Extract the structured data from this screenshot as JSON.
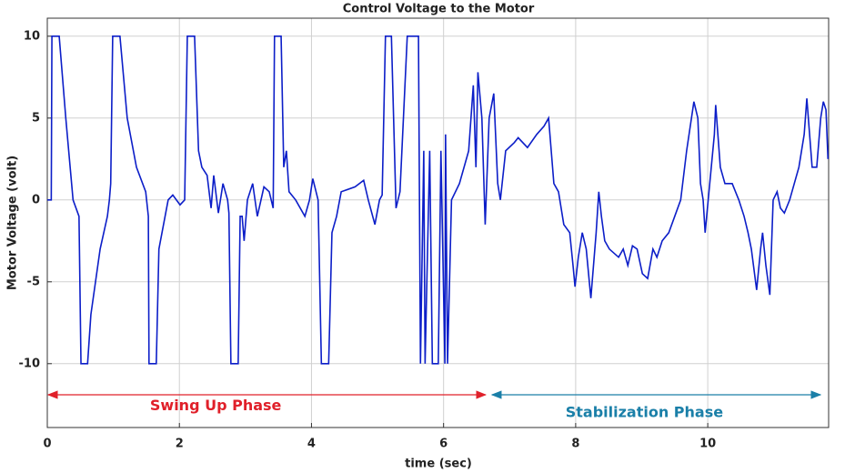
{
  "chart_data": {
    "type": "line",
    "title": "Control Voltage to the Motor",
    "xlabel": "time (sec)",
    "ylabel": "Motor Voltage (volt)",
    "color": "#0c1ec8",
    "grid": true,
    "xlim": [
      0,
      11.83
    ],
    "ylim": [
      -13.9,
      11.1
    ],
    "xticks": [
      0,
      2,
      4,
      6,
      8,
      10
    ],
    "yticks": [
      -10,
      -5,
      0,
      5,
      10
    ],
    "x": [
      0,
      0.06,
      0.07,
      0.18,
      0.28,
      0.39,
      0.48,
      0.51,
      0.61,
      0.66,
      0.8,
      0.91,
      0.94,
      0.96,
      0.99,
      1.1,
      1.21,
      1.35,
      1.49,
      1.53,
      1.54,
      1.65,
      1.69,
      1.83,
      1.9,
      2.01,
      2.08,
      2.12,
      2.23,
      2.29,
      2.34,
      2.42,
      2.48,
      2.52,
      2.59,
      2.66,
      2.73,
      2.75,
      2.78,
      2.89,
      2.92,
      2.95,
      2.98,
      3.03,
      3.11,
      3.18,
      3.28,
      3.36,
      3.42,
      3.44,
      3.54,
      3.58,
      3.62,
      3.66,
      3.76,
      3.9,
      3.97,
      4.02,
      4.1,
      4.15,
      4.26,
      4.31,
      4.38,
      4.45,
      4.66,
      4.79,
      4.86,
      4.96,
      5.03,
      5.07,
      5.12,
      5.21,
      5.28,
      5.34,
      5.45,
      5.62,
      5.65,
      5.7,
      5.72,
      5.79,
      5.83,
      5.92,
      5.96,
      6.02,
      6.03,
      6.06,
      6.12,
      6.24,
      6.38,
      6.45,
      6.49,
      6.52,
      6.58,
      6.63,
      6.69,
      6.76,
      6.82,
      6.86,
      6.94,
      7.07,
      7.13,
      7.27,
      7.41,
      7.52,
      7.59,
      7.67,
      7.74,
      7.82,
      7.91,
      7.96,
      7.99,
      8.04,
      8.1,
      8.16,
      8.23,
      8.31,
      8.35,
      8.39,
      8.44,
      8.51,
      8.65,
      8.72,
      8.79,
      8.86,
      8.93,
      9.01,
      9.09,
      9.17,
      9.23,
      9.31,
      9.41,
      9.5,
      9.59,
      9.68,
      9.79,
      9.85,
      9.89,
      9.93,
      9.96,
      10.03,
      10.1,
      10.12,
      10.19,
      10.26,
      10.37,
      10.47,
      10.55,
      10.61,
      10.66,
      10.74,
      10.8,
      10.83,
      10.88,
      10.94,
      10.99,
      11.05,
      11.1,
      11.16,
      11.24,
      11.31,
      11.38,
      11.46,
      11.5,
      11.58,
      11.65,
      11.71,
      11.75,
      11.79,
      11.82
    ],
    "values": [
      0,
      0,
      10,
      10,
      5,
      0,
      -1,
      -10,
      -10,
      -7,
      -3,
      -1,
      0,
      1,
      10,
      10,
      5,
      2,
      0.5,
      -1,
      -10,
      -10,
      -3,
      0,
      0.3,
      -0.3,
      0,
      10,
      10,
      3,
      2,
      1.5,
      -0.5,
      1.5,
      -0.8,
      1,
      0,
      -0.8,
      -10,
      -10,
      -1,
      -1,
      -2.5,
      0,
      1,
      -1,
      0.8,
      0.5,
      -0.5,
      10,
      10,
      2,
      3,
      0.5,
      0,
      -1,
      0,
      1.3,
      0,
      -10,
      -10,
      -2,
      -1,
      0.5,
      0.8,
      1.2,
      0,
      -1.5,
      0,
      0.3,
      10,
      10,
      -0.5,
      0.5,
      10,
      10,
      -10,
      3,
      -10,
      3,
      -10,
      -10,
      3,
      -10,
      4,
      -10,
      0,
      1,
      3,
      7,
      2,
      7.8,
      5,
      -1.5,
      5,
      6.5,
      1,
      0,
      3,
      3.5,
      3.8,
      3.2,
      4,
      4.5,
      5,
      1,
      0.5,
      -1.5,
      -2,
      -4,
      -5.3,
      -3.5,
      -2,
      -3,
      -6,
      -2,
      0.5,
      -1,
      -2.5,
      -3,
      -3.5,
      -3,
      -4,
      -2.8,
      -3,
      -4.5,
      -4.8,
      -3,
      -3.5,
      -2.5,
      -2,
      -1,
      0,
      3,
      6,
      5,
      1,
      0,
      -2,
      1,
      4,
      5.8,
      2,
      1,
      1,
      0,
      -1,
      -2,
      -3,
      -5.5,
      -3,
      -2,
      -4,
      -5.8,
      0,
      0.5,
      -0.5,
      -0.8,
      0,
      1,
      2,
      4,
      6.2,
      2,
      2,
      5,
      6,
      5.5,
      2.5
    ],
    "annotations": [
      {
        "text": "Swing Up Phase",
        "color": "#e0202a",
        "x": [
          0,
          6.65
        ],
        "y": -11.9,
        "text_at": [
          2.55,
          -12.6
        ]
      },
      {
        "text": "Stabilization Phase",
        "color": "#1a7fa8",
        "x": [
          6.72,
          11.72
        ],
        "y": -11.9,
        "text_at": [
          9.04,
          -13.0
        ]
      }
    ]
  }
}
